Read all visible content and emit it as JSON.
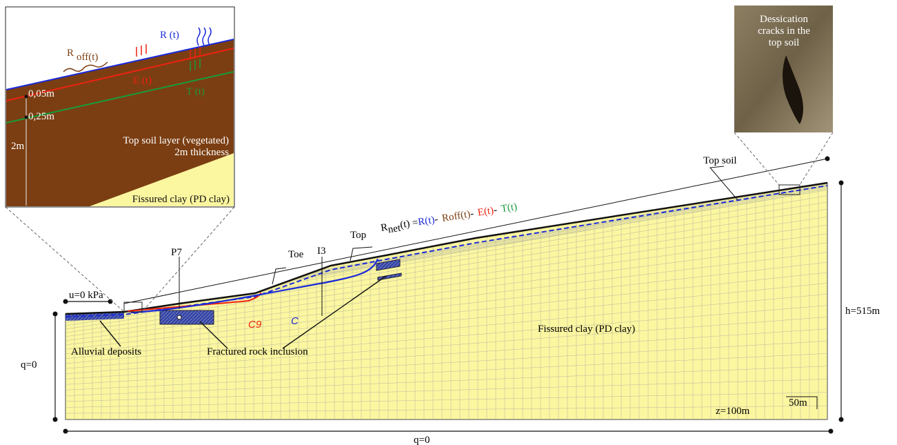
{
  "inset": {
    "r": "R (t)",
    "roff": "R",
    "roff_sub": "off(t)",
    "e": "E (t)",
    "t": "T (t)",
    "depth1": "0,05m",
    "depth2": "0,25m",
    "thickness": "2m",
    "layer": [
      "Top soil layer (vegetated)",
      "2m thickness"
    ],
    "clay": "Fissured clay (PD clay)"
  },
  "photo": {
    "caption": [
      "Dessication",
      "cracks in the",
      "top soil"
    ]
  },
  "equation": {
    "lhs": "R",
    "lhs_sub": "net",
    "lhs_tail": "(t) =",
    "r": "R(t)",
    "minus": "-",
    "roff": "R",
    "roff_sub": "off",
    "roff_tail": "(t)",
    "e": "E(t)",
    "t": "T(t)"
  },
  "labels": {
    "top_soil": "Top soil",
    "i3": "I3",
    "top": "Top",
    "toe": "Toe",
    "p7": "P7",
    "u0": "u=0 kPa",
    "c9": "C9",
    "c": "C",
    "clay": "Fissured clay (PD clay)",
    "alluvial": "Alluvial deposits",
    "rock": "Fractured rock inclusion",
    "q_left": "q=0",
    "q_bottom": "q=0",
    "h": "h=515m",
    "z": "z=100m",
    "scale": "50m"
  }
}
